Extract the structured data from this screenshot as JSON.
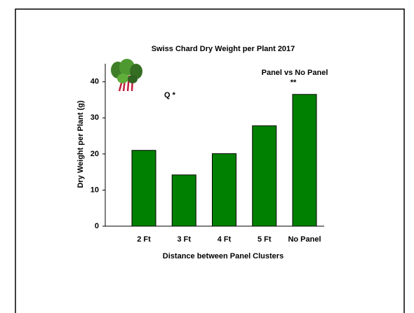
{
  "chart_data": {
    "type": "bar",
    "title": "Swiss Chard Dry Weight per Plant 2017",
    "x_label": "Distance between Panel Clusters",
    "y_label": "Dry Weight per Plant (g)",
    "categories": [
      "2 Ft",
      "3 Ft",
      "4 Ft",
      "5 Ft",
      "No Panel"
    ],
    "values": [
      21,
      14.2,
      20.1,
      27.8,
      36.5
    ],
    "color": "#008000",
    "ylim": [
      0,
      45
    ],
    "yticks": [
      0,
      10,
      20,
      30,
      40
    ],
    "annotations": [
      "Q  *",
      "Panel vs No Panel",
      "**"
    ]
  }
}
